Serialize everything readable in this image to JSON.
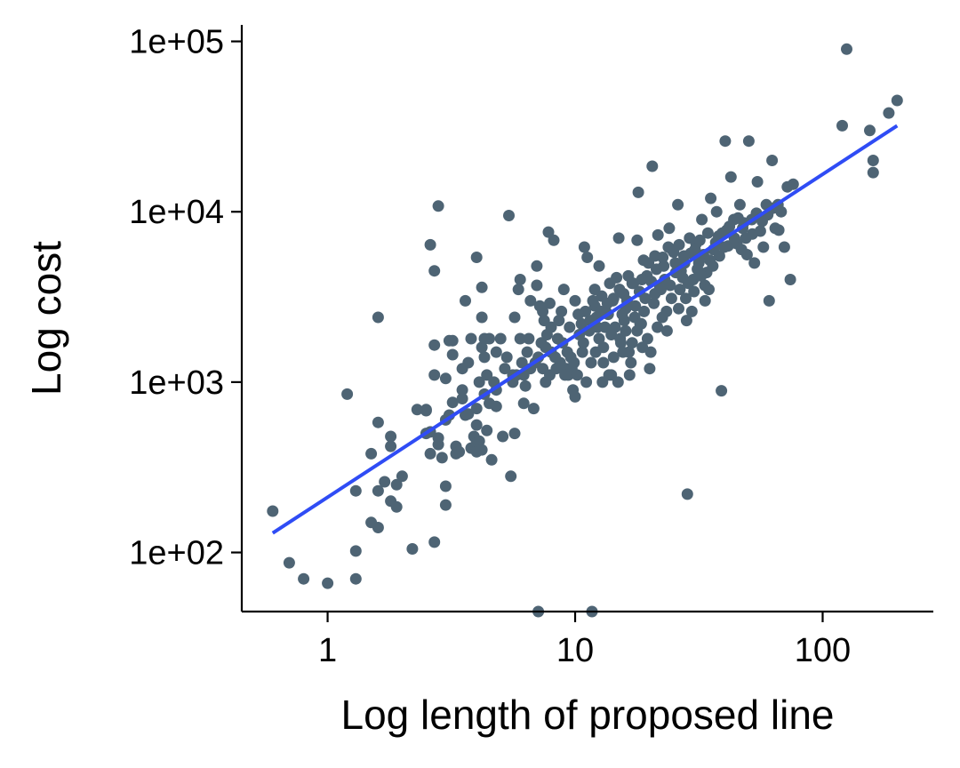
{
  "chart_data": {
    "type": "scatter",
    "title": "",
    "xlabel": "Log length of proposed line",
    "ylabel": "Log cost",
    "xscale": "log10",
    "yscale": "log10",
    "xlim": [
      0.45,
      280
    ],
    "ylim": [
      45,
      125000
    ],
    "xticks": [
      {
        "value": 1,
        "label": "1"
      },
      {
        "value": 10,
        "label": "10"
      },
      {
        "value": 100,
        "label": "100"
      }
    ],
    "yticks": [
      {
        "value": 100,
        "label": "1e+02"
      },
      {
        "value": 1000,
        "label": "1e+03"
      },
      {
        "value": 10000,
        "label": "1e+04"
      },
      {
        "value": 100000,
        "label": "1e+05"
      }
    ],
    "grid": false,
    "legend": "none",
    "point_color": "#4e6474",
    "fit_color": "#2f4cf5",
    "fit_line": {
      "x": [
        0.6,
        200
      ],
      "y": [
        130,
        32000
      ]
    },
    "points": [
      [
        0.6,
        175
      ],
      [
        0.7,
        87
      ],
      [
        0.8,
        70
      ],
      [
        1.0,
        66
      ],
      [
        1.3,
        70
      ],
      [
        1.3,
        102
      ],
      [
        1.2,
        850
      ],
      [
        1.3,
        230
      ],
      [
        1.5,
        380
      ],
      [
        1.5,
        150
      ],
      [
        1.6,
        140
      ],
      [
        1.6,
        230
      ],
      [
        1.6,
        580
      ],
      [
        1.6,
        2400
      ],
      [
        1.7,
        260
      ],
      [
        1.8,
        200
      ],
      [
        1.8,
        480
      ],
      [
        1.8,
        420
      ],
      [
        1.9,
        250
      ],
      [
        1.9,
        185
      ],
      [
        2.0,
        280
      ],
      [
        2.2,
        105
      ],
      [
        2.3,
        690
      ],
      [
        2.5,
        690
      ],
      [
        2.5,
        680
      ],
      [
        2.5,
        500
      ],
      [
        2.6,
        510
      ],
      [
        2.6,
        380
      ],
      [
        2.6,
        6400
      ],
      [
        2.7,
        4500
      ],
      [
        2.7,
        1650
      ],
      [
        2.7,
        1100
      ],
      [
        2.8,
        10800
      ],
      [
        2.7,
        115
      ],
      [
        2.8,
        470
      ],
      [
        2.8,
        430
      ],
      [
        2.9,
        360
      ],
      [
        3.0,
        1050
      ],
      [
        3.0,
        600
      ],
      [
        3.0,
        245
      ],
      [
        3.0,
        190
      ],
      [
        3.1,
        1750
      ],
      [
        3.1,
        640
      ],
      [
        3.2,
        1450
      ],
      [
        3.2,
        1750
      ],
      [
        3.2,
        760
      ],
      [
        3.3,
        420
      ],
      [
        3.3,
        380
      ],
      [
        3.4,
        390
      ],
      [
        3.5,
        900
      ],
      [
        3.5,
        1200
      ],
      [
        3.5,
        800
      ],
      [
        3.6,
        3000
      ],
      [
        3.6,
        640
      ],
      [
        3.7,
        650
      ],
      [
        3.7,
        1300
      ],
      [
        3.8,
        1800
      ],
      [
        3.8,
        410
      ],
      [
        3.9,
        480
      ],
      [
        4.0,
        5400
      ],
      [
        4.0,
        700
      ],
      [
        4.0,
        560
      ],
      [
        4.0,
        440
      ],
      [
        4.0,
        390
      ],
      [
        4.1,
        1000
      ],
      [
        4.1,
        450
      ],
      [
        4.2,
        3600
      ],
      [
        4.2,
        1600
      ],
      [
        4.2,
        400
      ],
      [
        4.2,
        2400
      ],
      [
        4.3,
        1800
      ],
      [
        4.3,
        1400
      ],
      [
        4.3,
        850
      ],
      [
        4.4,
        1100
      ],
      [
        4.4,
        520
      ],
      [
        4.5,
        1800
      ],
      [
        4.5,
        750
      ],
      [
        4.6,
        350
      ],
      [
        4.7,
        1000
      ],
      [
        4.8,
        900
      ],
      [
        4.8,
        720
      ],
      [
        4.8,
        1500
      ],
      [
        5.0,
        1800
      ],
      [
        5.1,
        480
      ],
      [
        5.2,
        1200
      ],
      [
        5.3,
        1400
      ],
      [
        5.4,
        9500
      ],
      [
        5.5,
        280
      ],
      [
        5.6,
        1100
      ],
      [
        5.6,
        1000
      ],
      [
        5.7,
        2400
      ],
      [
        5.7,
        500
      ],
      [
        5.8,
        1100
      ],
      [
        5.9,
        3500
      ],
      [
        6.0,
        4000
      ],
      [
        6.0,
        1800
      ],
      [
        6.1,
        1300
      ],
      [
        6.2,
        1100
      ],
      [
        6.2,
        750
      ],
      [
        6.3,
        950
      ],
      [
        6.4,
        1500
      ],
      [
        6.5,
        1800
      ],
      [
        6.6,
        3000
      ],
      [
        6.6,
        1200
      ],
      [
        6.8,
        700
      ],
      [
        7.0,
        3700
      ],
      [
        7.0,
        4800
      ],
      [
        7.1,
        45
      ],
      [
        7.1,
        1400
      ],
      [
        7.2,
        2800
      ],
      [
        7.3,
        1700
      ],
      [
        7.4,
        2600
      ],
      [
        7.5,
        2300
      ],
      [
        7.6,
        1600
      ],
      [
        7.6,
        1000
      ],
      [
        7.7,
        1900
      ],
      [
        7.8,
        7600
      ],
      [
        7.9,
        2900
      ],
      [
        8.0,
        1500
      ],
      [
        8.0,
        2100
      ],
      [
        8.2,
        6800
      ],
      [
        8.3,
        1400
      ],
      [
        8.5,
        1800
      ],
      [
        8.6,
        2300
      ],
      [
        8.8,
        2600
      ],
      [
        8.9,
        1700
      ],
      [
        9.0,
        3500
      ],
      [
        9.2,
        1200
      ],
      [
        9.4,
        1100
      ],
      [
        9.6,
        1400
      ],
      [
        9.8,
        900
      ],
      [
        10.0,
        3000
      ],
      [
        10.0,
        820
      ],
      [
        10.4,
        1900
      ],
      [
        10.6,
        2200
      ],
      [
        10.9,
        6200
      ],
      [
        11.2,
        5400
      ],
      [
        11.5,
        2300
      ],
      [
        11.7,
        45
      ],
      [
        12.0,
        2800
      ],
      [
        12.0,
        3500
      ],
      [
        12.3,
        2100
      ],
      [
        12.5,
        4800
      ],
      [
        12.8,
        3200
      ],
      [
        13.0,
        1600
      ],
      [
        13.3,
        2600
      ],
      [
        13.6,
        2500
      ],
      [
        14.0,
        1100
      ],
      [
        14.3,
        3100
      ],
      [
        14.7,
        4100
      ],
      [
        15.0,
        7000
      ],
      [
        15.3,
        1700
      ],
      [
        15.7,
        3300
      ],
      [
        16.0,
        2700
      ],
      [
        16.5,
        1500
      ],
      [
        17.0,
        3800
      ],
      [
        17.4,
        2400
      ],
      [
        17.8,
        6800
      ],
      [
        18.0,
        13000
      ],
      [
        18.3,
        2200
      ],
      [
        18.9,
        5200
      ],
      [
        19.5,
        4200
      ],
      [
        20.0,
        1200
      ],
      [
        20.5,
        18500
      ],
      [
        21.0,
        5500
      ],
      [
        21.6,
        7300
      ],
      [
        22.2,
        3500
      ],
      [
        22.8,
        4800
      ],
      [
        23.4,
        2600
      ],
      [
        24.0,
        8000
      ],
      [
        24.6,
        6000
      ],
      [
        25.4,
        5000
      ],
      [
        26.0,
        11000
      ],
      [
        26.8,
        4500
      ],
      [
        27.5,
        5500
      ],
      [
        28.2,
        2300
      ],
      [
        28.4,
        220
      ],
      [
        29.0,
        7000
      ],
      [
        30.0,
        4000
      ],
      [
        30.8,
        6500
      ],
      [
        31.6,
        5000
      ],
      [
        32.5,
        9000
      ],
      [
        33.4,
        3700
      ],
      [
        34.4,
        7500
      ],
      [
        35.3,
        12000
      ],
      [
        36.2,
        6000
      ],
      [
        37.3,
        10000
      ],
      [
        38.3,
        5500
      ],
      [
        39.0,
        890
      ],
      [
        39.3,
        7500
      ],
      [
        40.4,
        26000
      ],
      [
        41.5,
        6300
      ],
      [
        42.6,
        16000
      ],
      [
        43.8,
        9000
      ],
      [
        45.0,
        6500
      ],
      [
        46.3,
        11000
      ],
      [
        47.5,
        8000
      ],
      [
        48.9,
        7000
      ],
      [
        50.3,
        26000
      ],
      [
        51.7,
        9000
      ],
      [
        53.0,
        5000
      ],
      [
        54.5,
        15000
      ],
      [
        56.0,
        7700
      ],
      [
        57.6,
        6200
      ],
      [
        59.2,
        11000
      ],
      [
        60.8,
        3000
      ],
      [
        62.5,
        20000
      ],
      [
        64.3,
        8000
      ],
      [
        66.0,
        11000
      ],
      [
        68.0,
        10000
      ],
      [
        70.0,
        6200
      ],
      [
        72.0,
        14000
      ],
      [
        74.0,
        4000
      ],
      [
        76.0,
        14500
      ],
      [
        120.0,
        32000
      ],
      [
        125.0,
        90000
      ],
      [
        155.0,
        30000
      ],
      [
        160.0,
        20000
      ],
      [
        160.0,
        17000
      ],
      [
        185.0,
        38000
      ],
      [
        200.0,
        45000
      ],
      [
        14.2,
        3000
      ],
      [
        15.1,
        3500
      ],
      [
        16.4,
        4200
      ],
      [
        17.2,
        3800
      ],
      [
        18.6,
        4000
      ],
      [
        19.8,
        5000
      ],
      [
        21.3,
        4600
      ],
      [
        22.6,
        5400
      ],
      [
        23.8,
        6200
      ],
      [
        25.0,
        5800
      ],
      [
        26.3,
        6400
      ],
      [
        27.7,
        5000
      ],
      [
        29.3,
        5700
      ],
      [
        30.5,
        6000
      ],
      [
        31.9,
        6800
      ],
      [
        33.0,
        5600
      ],
      [
        34.0,
        4400
      ],
      [
        35.0,
        5200
      ],
      [
        36.0,
        4800
      ],
      [
        37.0,
        6600
      ],
      [
        38.0,
        7200
      ],
      [
        40.0,
        6200
      ],
      [
        41.0,
        7800
      ],
      [
        42.0,
        8200
      ],
      [
        44.0,
        7000
      ],
      [
        45.5,
        9200
      ],
      [
        47.0,
        6000
      ],
      [
        48.0,
        8600
      ],
      [
        49.5,
        5600
      ],
      [
        52.0,
        7400
      ],
      [
        54.0,
        9800
      ],
      [
        57.0,
        8800
      ],
      [
        60.0,
        9600
      ],
      [
        63.0,
        10500
      ],
      [
        66.5,
        7800
      ],
      [
        12.7,
        2600
      ],
      [
        13.5,
        2900
      ],
      [
        14.5,
        2100
      ],
      [
        15.5,
        2500
      ],
      [
        16.2,
        3000
      ],
      [
        17.5,
        2800
      ],
      [
        18.2,
        3400
      ],
      [
        19.2,
        3100
      ],
      [
        20.3,
        3900
      ],
      [
        21.0,
        3300
      ],
      [
        22.0,
        3600
      ],
      [
        23.0,
        4000
      ],
      [
        24.2,
        3700
      ],
      [
        25.5,
        4400
      ],
      [
        26.5,
        3500
      ],
      [
        27.2,
        4100
      ],
      [
        28.7,
        3800
      ],
      [
        30.2,
        3400
      ],
      [
        31.2,
        4600
      ],
      [
        32.3,
        4200
      ],
      [
        34.7,
        3500
      ],
      [
        11.0,
        2600
      ],
      [
        11.8,
        3000
      ],
      [
        12.2,
        2400
      ],
      [
        13.8,
        3800
      ],
      [
        15.8,
        2300
      ],
      [
        17.8,
        2000
      ],
      [
        19.0,
        2600
      ],
      [
        20.8,
        2900
      ],
      [
        22.5,
        2400
      ],
      [
        24.5,
        3100
      ],
      [
        26.2,
        2700
      ],
      [
        28.0,
        3100
      ],
      [
        29.6,
        2600
      ],
      [
        33.5,
        3000
      ],
      [
        9.5,
        2100
      ],
      [
        10.3,
        2500
      ],
      [
        10.8,
        1700
      ],
      [
        11.4,
        2000
      ],
      [
        12.5,
        1800
      ],
      [
        13.2,
        2100
      ],
      [
        14.0,
        1900
      ],
      [
        15.2,
        1800
      ],
      [
        16.0,
        2000
      ],
      [
        17.0,
        1700
      ],
      [
        18.5,
        2200
      ],
      [
        19.6,
        1800
      ],
      [
        21.5,
        2100
      ],
      [
        23.5,
        2000
      ],
      [
        8.7,
        1300
      ],
      [
        9.3,
        1500
      ],
      [
        9.9,
        1300
      ],
      [
        10.7,
        1500
      ],
      [
        11.6,
        1300
      ],
      [
        12.1,
        1500
      ],
      [
        13.0,
        1300
      ],
      [
        14.3,
        1400
      ],
      [
        15.6,
        1500
      ],
      [
        16.8,
        1300
      ],
      [
        18.7,
        1600
      ],
      [
        20.2,
        1500
      ],
      [
        6.9,
        1300
      ],
      [
        7.4,
        1200
      ],
      [
        7.9,
        1100
      ],
      [
        8.4,
        1200
      ],
      [
        9.1,
        1100
      ],
      [
        9.7,
        1200
      ],
      [
        10.2,
        1100
      ],
      [
        11.1,
        1000
      ],
      [
        12.9,
        1000
      ],
      [
        13.7,
        1100
      ],
      [
        14.9,
        1000
      ],
      [
        16.6,
        1100
      ]
    ]
  }
}
